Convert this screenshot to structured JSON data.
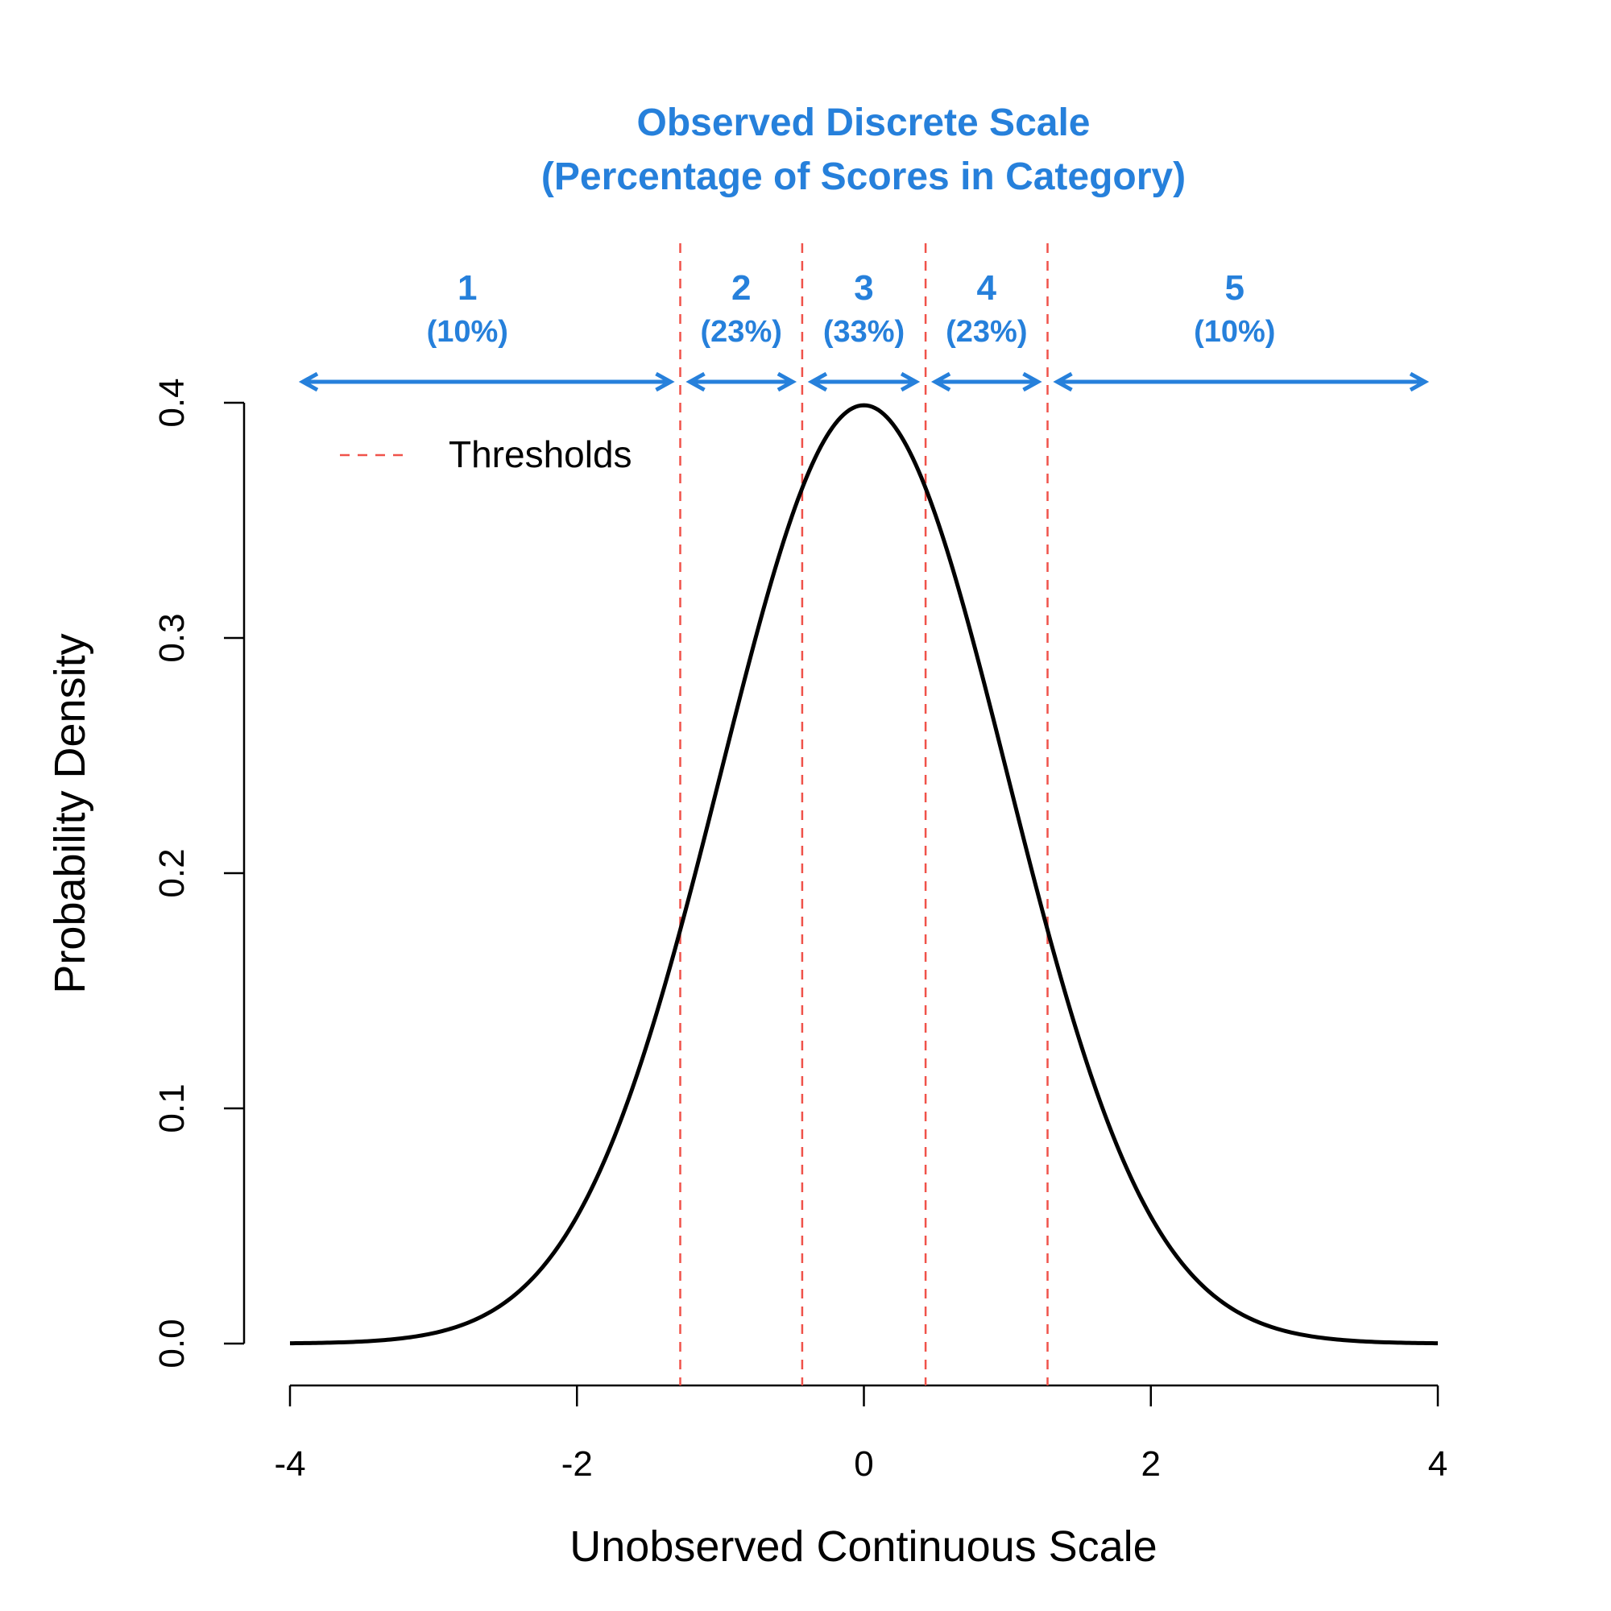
{
  "chart_data": {
    "type": "line",
    "title": "Observed Discrete Scale",
    "subtitle": "(Percentage of Scores in Category)",
    "xlabel": "Unobserved Continuous Scale",
    "ylabel": "Probability Density",
    "xlim": [
      -4,
      4
    ],
    "ylim": [
      0,
      0.4
    ],
    "x_ticks": [
      "-4",
      "-2",
      "0",
      "2",
      "4"
    ],
    "y_ticks": [
      "0.0",
      "0.1",
      "0.2",
      "0.3",
      "0.4"
    ],
    "series": [
      {
        "distribution": "standard normal",
        "x": [
          -4,
          -3.5,
          -3,
          -2.5,
          -2,
          -1.5,
          -1.28,
          -1,
          -0.5,
          -0.43,
          0,
          0.43,
          0.5,
          1,
          1.28,
          1.5,
          2,
          2.5,
          3,
          3.5,
          4
        ],
        "values": [
          0.0001,
          0.0009,
          0.0044,
          0.0175,
          0.054,
          0.1295,
          0.1758,
          0.242,
          0.3521,
          0.3637,
          0.3989,
          0.3637,
          0.3521,
          0.242,
          0.1758,
          0.1295,
          0.054,
          0.0175,
          0.0044,
          0.0009,
          0.0001
        ],
        "color": "#000000"
      }
    ],
    "thresholds": [
      -1.28,
      -0.43,
      0.43,
      1.28
    ],
    "threshold_color": "#F0524A",
    "legend": {
      "label": "Thresholds",
      "position": "top-left"
    },
    "categories": [
      {
        "label": "1",
        "percent": "(10%)",
        "from": -4,
        "to": -1.28
      },
      {
        "label": "2",
        "percent": "(23%)",
        "from": -1.28,
        "to": -0.43
      },
      {
        "label": "3",
        "percent": "(33%)",
        "from": -0.43,
        "to": 0.43
      },
      {
        "label": "4",
        "percent": "(23%)",
        "from": 0.43,
        "to": 1.28
      },
      {
        "label": "5",
        "percent": "(10%)",
        "from": 1.28,
        "to": 4
      }
    ],
    "accent_color": "#2680DB",
    "grid": false
  }
}
